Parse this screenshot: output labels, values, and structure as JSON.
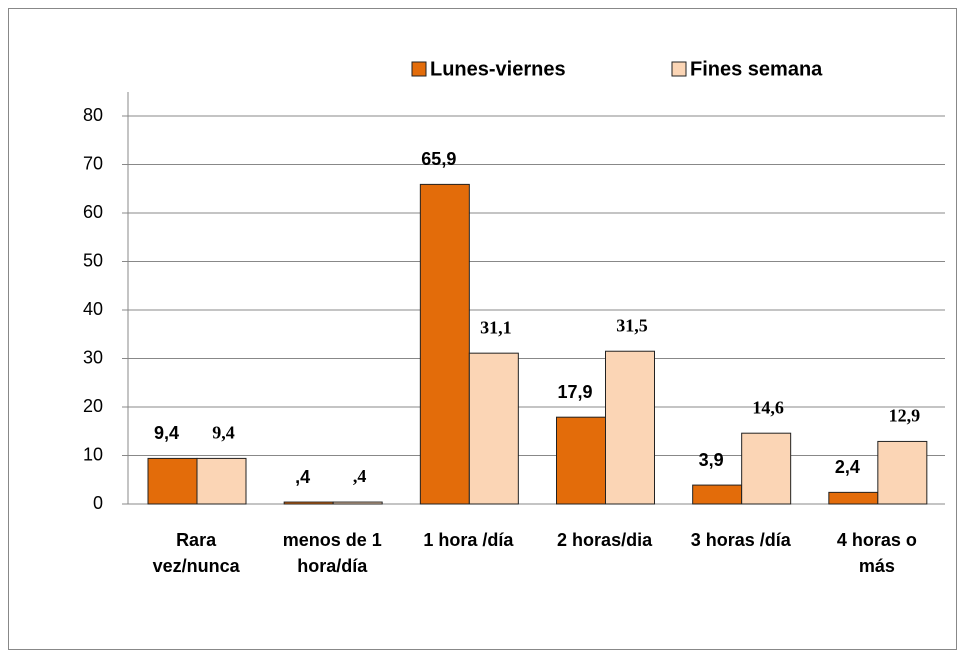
{
  "chart_data": {
    "type": "bar",
    "categories": [
      "Rara\nvez/nunca",
      "menos de 1\nhora/día",
      "1 hora /día",
      "2 horas/dia",
      "3 horas /día",
      "4 horas o\nmás"
    ],
    "series": [
      {
        "name": "Lunes-viernes",
        "color": "#e36c0a",
        "values": [
          9.4,
          0.4,
          65.9,
          17.9,
          3.9,
          2.4
        ],
        "value_labels": [
          "9,4",
          ",4",
          "65,9",
          "17,9",
          "3,9",
          "2,4"
        ]
      },
      {
        "name": "Fines semana",
        "color": "#fbd5b5",
        "values": [
          9.4,
          0.4,
          31.1,
          31.5,
          14.6,
          12.9
        ],
        "value_labels": [
          "9,4",
          ",4",
          "31,1",
          "31,5",
          "14,6",
          "12,9"
        ]
      }
    ],
    "ylim": [
      0,
      80
    ],
    "yticks": [
      0,
      10,
      20,
      30,
      40,
      50,
      60,
      70,
      80
    ],
    "grid": true,
    "legend": "top"
  }
}
